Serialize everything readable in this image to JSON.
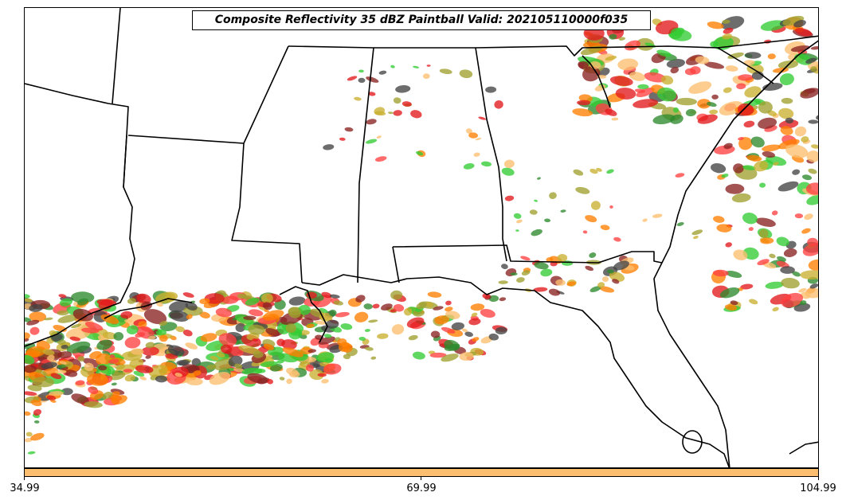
{
  "title": "Composite Reflectivity 35 dBZ Paintball Valid: 202105110000f035",
  "colorbar": {
    "color": "#FDBF6F",
    "ticks": [
      "34.99",
      "69.99",
      "104.99"
    ]
  },
  "member_colors": [
    "#E31A1C",
    "#FF7F00",
    "#FDBF6F",
    "#33CC33",
    "#2E8B2E",
    "#8B2323",
    "#A0A030",
    "#444444",
    "#C9B030",
    "#FF4040"
  ],
  "map": {
    "region": "Southeastern United States",
    "boundaries": [
      "state-borders",
      "coastline"
    ]
  }
}
